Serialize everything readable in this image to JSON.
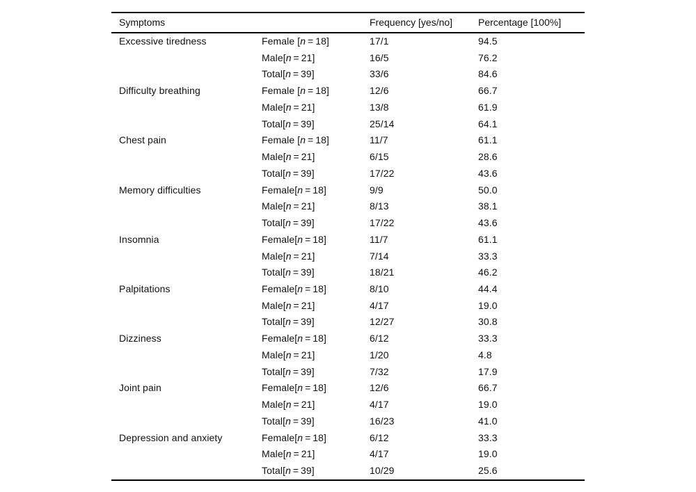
{
  "table": {
    "headers": {
      "symptoms": "Symptoms",
      "group": "",
      "frequency": "Frequency [yes/no]",
      "percentage": "Percentage [100%]"
    },
    "n_var": "n",
    "eq": "=",
    "rows": [
      {
        "symptom": "Excessive tiredness",
        "subrows": [
          {
            "group": "Female",
            "space": true,
            "n": "18",
            "freq": "17/1",
            "pct": "94.5"
          },
          {
            "group": "Male",
            "space": false,
            "n": "21",
            "freq": "16/5",
            "pct": "76.2"
          },
          {
            "group": "Total",
            "space": false,
            "n": "39",
            "freq": "33/6",
            "pct": "84.6"
          }
        ]
      },
      {
        "symptom": "Difficulty breathing",
        "subrows": [
          {
            "group": "Female",
            "space": true,
            "n": "18",
            "freq": "12/6",
            "pct": "66.7"
          },
          {
            "group": "Male",
            "space": false,
            "n": "21",
            "freq": "13/8",
            "pct": "61.9"
          },
          {
            "group": "Total",
            "space": false,
            "n": "39",
            "freq": "25/14",
            "pct": "64.1"
          }
        ]
      },
      {
        "symptom": "Chest pain",
        "subrows": [
          {
            "group": "Female",
            "space": true,
            "n": "18",
            "freq": "11/7",
            "pct": "61.1"
          },
          {
            "group": "Male",
            "space": false,
            "n": "21",
            "freq": "6/15",
            "pct": "28.6"
          },
          {
            "group": "Total",
            "space": false,
            "n": "39",
            "freq": "17/22",
            "pct": "43.6"
          }
        ]
      },
      {
        "symptom": "Memory difficulties",
        "subrows": [
          {
            "group": "Female",
            "space": false,
            "n": "18",
            "freq": "9/9",
            "pct": "50.0"
          },
          {
            "group": "Male",
            "space": false,
            "n": "21",
            "freq": "8/13",
            "pct": "38.1"
          },
          {
            "group": "Total",
            "space": false,
            "n": "39",
            "freq": "17/22",
            "pct": "43.6"
          }
        ]
      },
      {
        "symptom": "Insomnia",
        "subrows": [
          {
            "group": "Female",
            "space": false,
            "n": "18",
            "freq": "11/7",
            "pct": "61.1"
          },
          {
            "group": "Male",
            "space": false,
            "n": "21",
            "freq": "7/14",
            "pct": "33.3"
          },
          {
            "group": "Total",
            "space": false,
            "n": "39",
            "freq": "18/21",
            "pct": "46.2"
          }
        ]
      },
      {
        "symptom": "Palpitations",
        "subrows": [
          {
            "group": "Female",
            "space": false,
            "n": "18",
            "freq": "8/10",
            "pct": "44.4"
          },
          {
            "group": "Male",
            "space": false,
            "n": "21",
            "freq": "4/17",
            "pct": "19.0"
          },
          {
            "group": "Total",
            "space": false,
            "n": "39",
            "freq": "12/27",
            "pct": "30.8"
          }
        ]
      },
      {
        "symptom": "Dizziness",
        "subrows": [
          {
            "group": "Female",
            "space": false,
            "n": "18",
            "freq": "6/12",
            "pct": "33.3"
          },
          {
            "group": "Male",
            "space": false,
            "n": "21",
            "freq": "1/20",
            "pct": "4.8"
          },
          {
            "group": "Total",
            "space": false,
            "n": "39",
            "freq": "7/32",
            "pct": "17.9"
          }
        ]
      },
      {
        "symptom": "Joint pain",
        "subrows": [
          {
            "group": "Female",
            "space": false,
            "n": "18",
            "freq": "12/6",
            "pct": "66.7"
          },
          {
            "group": "Male",
            "space": false,
            "n": "21",
            "freq": "4/17",
            "pct": "19.0"
          },
          {
            "group": "Total",
            "space": false,
            "n": "39",
            "freq": "16/23",
            "pct": "41.0"
          }
        ]
      },
      {
        "symptom": "Depression and anxiety",
        "subrows": [
          {
            "group": "Female",
            "space": false,
            "n": "18",
            "freq": "6/12",
            "pct": "33.3"
          },
          {
            "group": "Male",
            "space": false,
            "n": "21",
            "freq": "4/17",
            "pct": "19.0"
          },
          {
            "group": "Total",
            "space": false,
            "n": "39",
            "freq": "10/29",
            "pct": "25.6"
          }
        ]
      }
    ]
  }
}
